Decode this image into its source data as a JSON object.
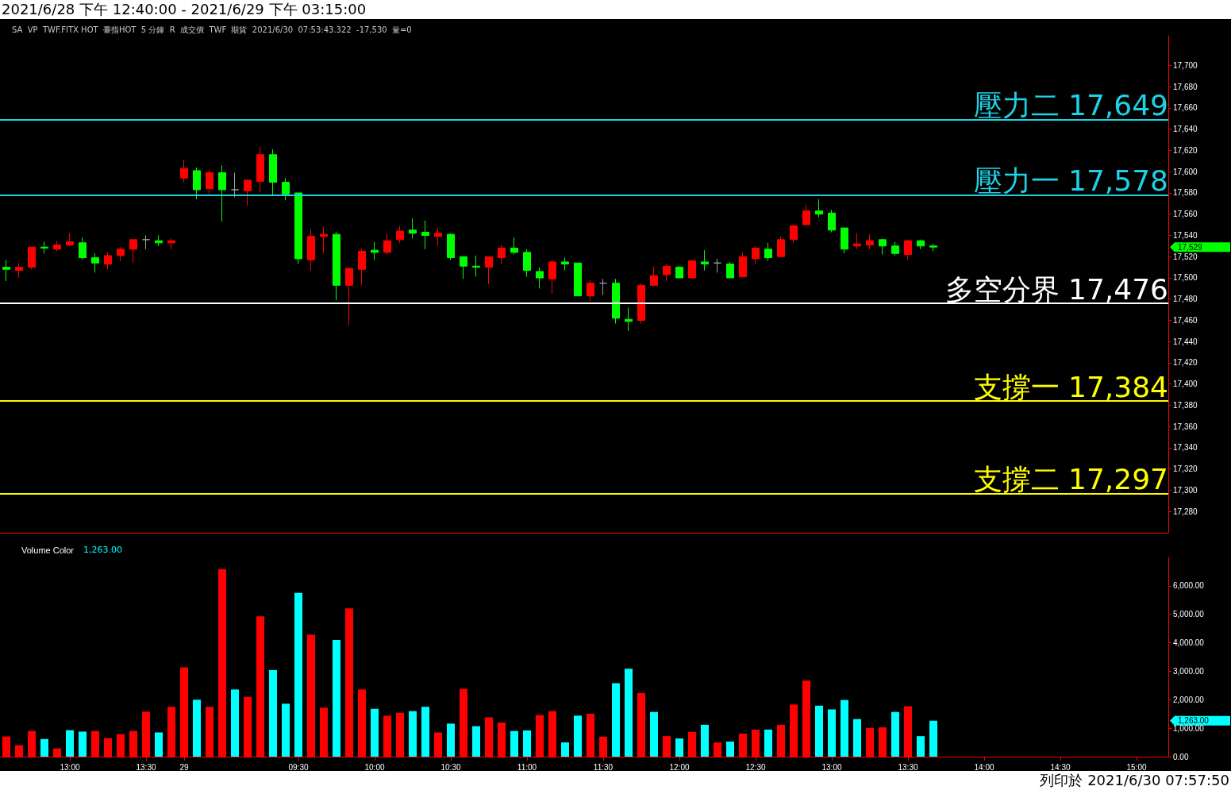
{
  "chart_data": [
    {
      "type": "candlestick",
      "title": "2021/6/28 下午 12:40:00 - 2021/6/29 下午 03:15:00",
      "subtitle": "SA  VP  TWF.FITX HOT  臺指HOT  5 分鐘  R  成交價  TWF  期貨  2021/6/30  07:53:43.322  -17,530  量=0",
      "categories": [
        null,
        null,
        null,
        null,
        null,
        null,
        null,
        null,
        null,
        null,
        null,
        null,
        null,
        null,
        null,
        null,
        null,
        null,
        null,
        null,
        null,
        null,
        null,
        null,
        null,
        null,
        null,
        null,
        null,
        null,
        null,
        null,
        null,
        null,
        null,
        null,
        null,
        null,
        null,
        null,
        null,
        null,
        null,
        null,
        null,
        null,
        null,
        null,
        null,
        null,
        null,
        null,
        null,
        null,
        null,
        null,
        null,
        null,
        null,
        null,
        null,
        null,
        null,
        null,
        null,
        null,
        null,
        null,
        null,
        null,
        null,
        null,
        null,
        null,
        null,
        null,
        null,
        null,
        null,
        null,
        null,
        null,
        null,
        null,
        null,
        null,
        null,
        null,
        null,
        null,
        null,
        null
      ],
      "ohlc": [
        [
          17510,
          17517,
          17497,
          17508
        ],
        [
          17507,
          17514,
          17500,
          17510
        ],
        [
          17510,
          17529,
          17508,
          17529
        ],
        [
          17529,
          17534,
          17523,
          17528
        ],
        [
          17527,
          17535,
          17525,
          17531
        ],
        [
          17531,
          17542,
          17530,
          17534
        ],
        [
          17533,
          17538,
          17517,
          17519
        ],
        [
          17519,
          17523,
          17505,
          17514
        ],
        [
          17513,
          17524,
          17508,
          17521
        ],
        [
          17521,
          17529,
          17516,
          17527
        ],
        [
          17527,
          17536,
          17514,
          17536
        ],
        [
          17536,
          17540,
          17527,
          17536
        ],
        [
          17535,
          17540,
          17530,
          17533
        ],
        [
          17533,
          17537,
          17527,
          17535
        ],
        [
          17594,
          17611,
          17590,
          17603
        ],
        [
          17601,
          17604,
          17574,
          17583
        ],
        [
          17584,
          17602,
          17579,
          17599
        ],
        [
          17599,
          17606,
          17553,
          17583
        ],
        [
          17583,
          17599,
          17576,
          17583
        ],
        [
          17582,
          17592,
          17568,
          17592
        ],
        [
          17591,
          17623,
          17581,
          17616
        ],
        [
          17616,
          17621,
          17578,
          17590
        ],
        [
          17590,
          17594,
          17573,
          17579
        ],
        [
          17580,
          17580,
          17513,
          17518
        ],
        [
          17517,
          17546,
          17507,
          17539
        ],
        [
          17539,
          17548,
          17523,
          17541
        ],
        [
          17541,
          17543,
          17479,
          17493
        ],
        [
          17493,
          17509,
          17456,
          17509
        ],
        [
          17508,
          17527,
          17493,
          17525
        ],
        [
          17526,
          17534,
          17517,
          17524
        ],
        [
          17524,
          17542,
          17522,
          17535
        ],
        [
          17536,
          17549,
          17533,
          17544
        ],
        [
          17545,
          17556,
          17537,
          17542
        ],
        [
          17543,
          17554,
          17527,
          17540
        ],
        [
          17539,
          17547,
          17530,
          17542
        ],
        [
          17541,
          17542,
          17517,
          17519
        ],
        [
          17520,
          17520,
          17499,
          17511
        ],
        [
          17511,
          17521,
          17501,
          17510
        ],
        [
          17510,
          17520,
          17494,
          17520
        ],
        [
          17519,
          17531,
          17513,
          17528
        ],
        [
          17528,
          17538,
          17522,
          17524
        ],
        [
          17524,
          17527,
          17501,
          17507
        ],
        [
          17506,
          17510,
          17490,
          17500
        ],
        [
          17499,
          17517,
          17485,
          17515
        ],
        [
          17515,
          17519,
          17507,
          17513
        ],
        [
          17514,
          17514,
          17483,
          17483
        ],
        [
          17483,
          17498,
          17478,
          17495
        ],
        [
          17495,
          17499,
          17484,
          17495
        ],
        [
          17495,
          17499,
          17457,
          17462
        ],
        [
          17461,
          17472,
          17450,
          17459
        ],
        [
          17460,
          17495,
          17457,
          17493
        ],
        [
          17493,
          17511,
          17493,
          17502
        ],
        [
          17503,
          17513,
          17497,
          17511
        ],
        [
          17510,
          17511,
          17500,
          17500
        ],
        [
          17500,
          17517,
          17499,
          17516
        ],
        [
          17515,
          17526,
          17507,
          17513
        ],
        [
          17514,
          17518,
          17505,
          17514
        ],
        [
          17513,
          17515,
          17500,
          17500
        ],
        [
          17501,
          17524,
          17501,
          17520
        ],
        [
          17518,
          17530,
          17513,
          17528
        ],
        [
          17527,
          17533,
          17516,
          17519
        ],
        [
          17520,
          17539,
          17520,
          17536
        ],
        [
          17536,
          17550,
          17533,
          17549
        ],
        [
          17550,
          17569,
          17550,
          17563
        ],
        [
          17563,
          17574,
          17557,
          17560
        ],
        [
          17561,
          17564,
          17543,
          17545
        ],
        [
          17547,
          17547,
          17523,
          17527
        ],
        [
          17530,
          17542,
          17527,
          17532
        ],
        [
          17531,
          17541,
          17527,
          17535
        ],
        [
          17536,
          17537,
          17522,
          17530
        ],
        [
          17530,
          17534,
          17521,
          17523
        ],
        [
          17522,
          17536,
          17517,
          17535
        ],
        [
          17535,
          17536,
          17527,
          17530
        ],
        [
          17530,
          17532,
          17525,
          17529
        ],
        null,
        null,
        null,
        null,
        null,
        null,
        null,
        null,
        null,
        null,
        null,
        null,
        null,
        null,
        null,
        null,
        null,
        null
      ],
      "colors": [
        "#00ff00",
        "#ff0000",
        "#ff0000",
        "#00ff00",
        "#ff0000",
        "#ff0000",
        "#00ff00",
        "#00ff00",
        "#ff0000",
        "#ff0000",
        "#ff0000",
        "#a0a0a0",
        "#00ff00",
        "#ff0000",
        "#ff0000",
        "#00ff00",
        "#ff0000",
        "#00ff00",
        "#a0a0a0",
        "#ff0000",
        "#ff0000",
        "#00ff00",
        "#00ff00",
        "#00ff00",
        "#ff0000",
        "#ff0000",
        "#00ff00",
        "#ff0000",
        "#ff0000",
        "#00ff00",
        "#ff0000",
        "#ff0000",
        "#00ff00",
        "#00ff00",
        "#ff0000",
        "#00ff00",
        "#00ff00",
        "#00ff00",
        "#ff0000",
        "#ff0000",
        "#00ff00",
        "#00ff00",
        "#00ff00",
        "#ff0000",
        "#00ff00",
        "#00ff00",
        "#ff0000",
        "#a0a0a0",
        "#00ff00",
        "#00ff00",
        "#ff0000",
        "#ff0000",
        "#ff0000",
        "#00ff00",
        "#ff0000",
        "#00ff00",
        "#a0a0a0",
        "#00ff00",
        "#ff0000",
        "#ff0000",
        "#00ff00",
        "#ff0000",
        "#ff0000",
        "#ff0000",
        "#00ff00",
        "#00ff00",
        "#00ff00",
        "#ff0000",
        "#ff0000",
        "#00ff00",
        "#00ff00",
        "#ff0000",
        "#00ff00",
        "#00ff00",
        null,
        null,
        null,
        null,
        null,
        null,
        null,
        null,
        null,
        null,
        null,
        null,
        null,
        null,
        null,
        null,
        null,
        null
      ],
      "ylim": [
        17260,
        17728
      ],
      "yticks": [
        {
          "value": 17280,
          "label": "17,280"
        },
        {
          "value": 17300,
          "label": "17,300"
        },
        {
          "value": 17320,
          "label": "17,320"
        },
        {
          "value": 17340,
          "label": "17,340"
        },
        {
          "value": 17360,
          "label": "17,360"
        },
        {
          "value": 17380,
          "label": "17,380"
        },
        {
          "value": 17400,
          "label": "17,400"
        },
        {
          "value": 17420,
          "label": "17,420"
        },
        {
          "value": 17440,
          "label": "17,440"
        },
        {
          "value": 17460,
          "label": "17,460"
        },
        {
          "value": 17480,
          "label": "17,480"
        },
        {
          "value": 17500,
          "label": "17,500"
        },
        {
          "value": 17520,
          "label": "17,520"
        },
        {
          "value": 17540,
          "label": "17,540"
        },
        {
          "value": 17560,
          "label": "17,560"
        },
        {
          "value": 17580,
          "label": "17,580"
        },
        {
          "value": 17600,
          "label": "17,600"
        },
        {
          "value": 17620,
          "label": "17,620"
        },
        {
          "value": 17640,
          "label": "17,640"
        },
        {
          "value": 17660,
          "label": "17,660"
        },
        {
          "value": 17680,
          "label": "17,680"
        },
        {
          "value": 17700,
          "label": "17,700"
        }
      ],
      "ref_lines": [
        {
          "axis": "y",
          "value": 17649,
          "label": "壓力二 17,649",
          "color": "#1ed2e6"
        },
        {
          "axis": "y",
          "value": 17578,
          "label": "壓力一 17,578",
          "color": "#1ed2e6"
        },
        {
          "axis": "y",
          "value": 17476,
          "label": "多空分界 17,476",
          "color": "#ffffff"
        },
        {
          "axis": "y",
          "value": 17384,
          "label": "支撐一 17,384",
          "color": "#ffff00"
        },
        {
          "axis": "y",
          "value": 17297,
          "label": "支撐二 17,297",
          "color": "#ffff00"
        }
      ],
      "annotations": [
        "17,529"
      ]
    },
    {
      "type": "bar",
      "title": "Volume Color",
      "subtitle": "1,263.00",
      "categories": [
        null,
        null,
        null,
        null,
        null,
        "13:00",
        null,
        null,
        null,
        null,
        null,
        "13:30",
        null,
        null,
        "29",
        null,
        null,
        null,
        null,
        null,
        null,
        null,
        null,
        "09:30",
        null,
        null,
        null,
        null,
        null,
        "10:00",
        null,
        null,
        null,
        null,
        null,
        "10:30",
        null,
        null,
        null,
        null,
        null,
        "11:00",
        null,
        null,
        null,
        null,
        null,
        "11:30",
        null,
        null,
        null,
        null,
        null,
        "12:00",
        null,
        null,
        null,
        null,
        null,
        "12:30",
        null,
        null,
        null,
        null,
        null,
        "13:00",
        null,
        null,
        null,
        null,
        null,
        "13:30",
        null,
        null,
        null,
        null,
        null,
        "14:00",
        null,
        null,
        null,
        null,
        null,
        "14:30",
        null,
        null,
        null,
        null,
        null,
        "15:00",
        null,
        null
      ],
      "values": [
        710,
        400,
        900,
        620,
        290,
        930,
        880,
        900,
        650,
        790,
        900,
        1580,
        850,
        1750,
        3140,
        2000,
        1750,
        6590,
        2360,
        2100,
        4930,
        3040,
        1860,
        5750,
        4290,
        1720,
        4100,
        5210,
        2360,
        1680,
        1440,
        1540,
        1600,
        1750,
        850,
        1160,
        2380,
        1070,
        1380,
        1200,
        900,
        920,
        1460,
        1600,
        500,
        1440,
        1510,
        700,
        2580,
        3090,
        2230,
        1570,
        720,
        640,
        870,
        1120,
        500,
        530,
        810,
        950,
        950,
        1120,
        1830,
        2670,
        1790,
        1660,
        1990,
        1320,
        1010,
        1030,
        1570,
        1770,
        720,
        1263,
        null,
        null,
        null,
        null,
        null,
        null,
        null,
        null,
        null,
        null,
        null,
        null,
        null,
        null,
        null,
        null,
        null,
        null
      ],
      "colors": [
        "#ff0000",
        "#ff0000",
        "#ff0000",
        "#00ffff",
        "#ff0000",
        "#00ffff",
        "#00ffff",
        "#ff0000",
        "#ff0000",
        "#ff0000",
        "#ff0000",
        "#ff0000",
        "#00ffff",
        "#ff0000",
        "#ff0000",
        "#00ffff",
        "#ff0000",
        "#ff0000",
        "#00ffff",
        "#ff0000",
        "#ff0000",
        "#00ffff",
        "#00ffff",
        "#00ffff",
        "#ff0000",
        "#ff0000",
        "#00ffff",
        "#ff0000",
        "#ff0000",
        "#00ffff",
        "#ff0000",
        "#ff0000",
        "#00ffff",
        "#00ffff",
        "#ff0000",
        "#00ffff",
        "#ff0000",
        "#00ffff",
        "#ff0000",
        "#ff0000",
        "#00ffff",
        "#00ffff",
        "#ff0000",
        "#ff0000",
        "#00ffff",
        "#00ffff",
        "#ff0000",
        "#ff0000",
        "#00ffff",
        "#00ffff",
        "#ff0000",
        "#00ffff",
        "#ff0000",
        "#00ffff",
        "#ff0000",
        "#00ffff",
        "#ff0000",
        "#00ffff",
        "#ff0000",
        "#ff0000",
        "#00ffff",
        "#ff0000",
        "#ff0000",
        "#ff0000",
        "#00ffff",
        "#00ffff",
        "#00ffff",
        "#00ffff",
        "#ff0000",
        "#ff0000",
        "#00ffff",
        "#ff0000",
        "#00ffff",
        "#00ffff",
        null,
        null,
        null,
        null,
        null,
        null,
        null,
        null,
        null,
        null,
        null,
        null,
        null,
        null,
        null,
        null,
        null,
        null
      ],
      "ylim": [
        0,
        7000
      ],
      "yticks": [
        {
          "value": 0,
          "label": "0.00"
        },
        {
          "value": 1000,
          "label": "1,000.00"
        },
        {
          "value": 2000,
          "label": "2,000.00"
        },
        {
          "value": 3000,
          "label": "3,000.00"
        },
        {
          "value": 4000,
          "label": "4,000.00"
        },
        {
          "value": 5000,
          "label": "5,000.00"
        },
        {
          "value": 6000,
          "label": "6,000.00"
        }
      ],
      "annotations": [
        "1,263.00",
        "列印於 2021/6/30 07:57:50"
      ]
    }
  ]
}
